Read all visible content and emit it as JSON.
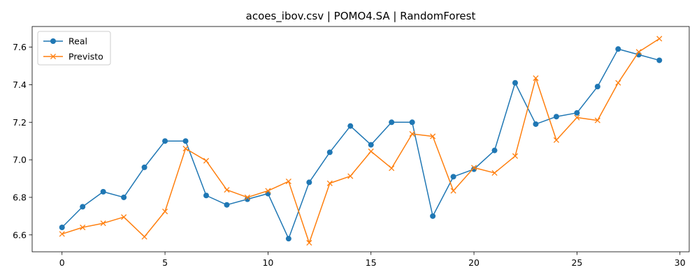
{
  "chart_data": {
    "type": "line",
    "title": "acoes_ibov.csv | POMO4.SA | RandomForest",
    "xlabel": "",
    "ylabel": "",
    "x": [
      0,
      1,
      2,
      3,
      4,
      5,
      6,
      7,
      8,
      9,
      10,
      11,
      12,
      13,
      14,
      15,
      16,
      17,
      18,
      19,
      20,
      21,
      22,
      23,
      24,
      25,
      26,
      27,
      28,
      29
    ],
    "xlim": [
      -1.45,
      30.45
    ],
    "ylim": [
      6.51,
      7.71
    ],
    "xticks": [
      0,
      5,
      10,
      15,
      20,
      25,
      30
    ],
    "xtick_labels": [
      "0",
      "5",
      "10",
      "15",
      "20",
      "25",
      "30"
    ],
    "yticks": [
      6.6,
      6.8,
      7.0,
      7.2,
      7.4,
      7.6
    ],
    "ytick_labels": [
      "6.6",
      "6.8",
      "7.0",
      "7.2",
      "7.4",
      "7.6"
    ],
    "grid": false,
    "legend_position": "upper-left",
    "series": [
      {
        "name": "Real",
        "color": "#1f77b4",
        "marker": "circle",
        "values": [
          6.64,
          6.75,
          6.83,
          6.8,
          6.96,
          7.1,
          7.1,
          6.81,
          6.76,
          6.79,
          6.82,
          6.58,
          6.88,
          7.04,
          7.18,
          7.08,
          7.2,
          7.2,
          6.7,
          6.91,
          6.95,
          7.05,
          7.41,
          7.19,
          7.23,
          7.25,
          7.39,
          7.59,
          7.56,
          7.53
        ]
      },
      {
        "name": "Previsto",
        "color": "#ff7f0e",
        "marker": "x",
        "values": [
          6.605,
          6.64,
          6.662,
          6.695,
          6.59,
          6.725,
          7.06,
          6.995,
          6.84,
          6.8,
          6.835,
          6.885,
          6.558,
          6.875,
          6.913,
          7.045,
          6.955,
          7.138,
          7.125,
          6.835,
          6.958,
          6.93,
          7.02,
          7.435,
          7.105,
          7.225,
          7.21,
          7.41,
          7.575,
          7.645
        ]
      }
    ]
  }
}
